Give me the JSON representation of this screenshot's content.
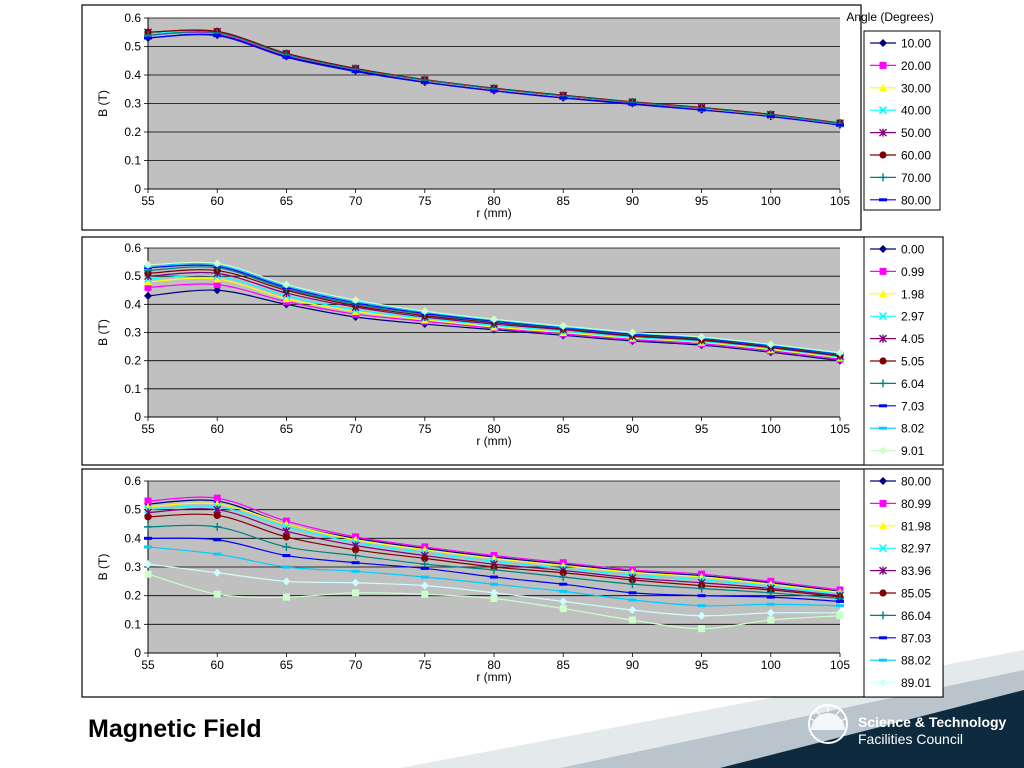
{
  "slide": {
    "title": "Magnetic Field",
    "logo_line1": "Science & Technology",
    "logo_line2": "Facilities Council",
    "colors": {
      "plot_bg": "#c0c0c0",
      "banner_dark": "#0e2a3f",
      "banner_light": "#b9c4cc"
    }
  },
  "chart_data": [
    {
      "type": "line",
      "xlabel": "r (mm)",
      "ylabel": "B (T)",
      "xlim": [
        55,
        105
      ],
      "ylim": [
        0,
        0.6
      ],
      "x_ticks": [
        55,
        60,
        65,
        70,
        75,
        80,
        85,
        90,
        95,
        100,
        105
      ],
      "y_ticks": [
        0,
        0.1,
        0.2,
        0.3,
        0.4,
        0.5,
        0.6
      ],
      "grid": "horizontal",
      "legend_title": "Angle (Degrees)",
      "legend_position": "right",
      "x": [
        55,
        60,
        65,
        70,
        75,
        80,
        85,
        90,
        95,
        100,
        105
      ],
      "series": [
        {
          "name": "10.00",
          "color": "#000080",
          "marker": "diamond",
          "values": [
            0.53,
            0.54,
            0.465,
            0.415,
            0.375,
            0.345,
            0.32,
            0.3,
            0.278,
            0.255,
            0.225
          ]
        },
        {
          "name": "20.00",
          "color": "#ff00ff",
          "marker": "square",
          "values": [
            0.54,
            0.545,
            0.47,
            0.42,
            0.38,
            0.35,
            0.325,
            0.303,
            0.282,
            0.258,
            0.228
          ]
        },
        {
          "name": "30.00",
          "color": "#ffff00",
          "marker": "triangle",
          "values": [
            0.545,
            0.548,
            0.472,
            0.421,
            0.381,
            0.351,
            0.326,
            0.304,
            0.283,
            0.259,
            0.229
          ]
        },
        {
          "name": "40.00",
          "color": "#00ffff",
          "marker": "x",
          "values": [
            0.545,
            0.55,
            0.473,
            0.422,
            0.382,
            0.352,
            0.327,
            0.305,
            0.284,
            0.26,
            0.23
          ]
        },
        {
          "name": "50.00",
          "color": "#800080",
          "marker": "star",
          "values": [
            0.55,
            0.552,
            0.475,
            0.423,
            0.383,
            0.353,
            0.328,
            0.305,
            0.285,
            0.261,
            0.231
          ]
        },
        {
          "name": "60.00",
          "color": "#800000",
          "marker": "circle",
          "values": [
            0.55,
            0.553,
            0.476,
            0.423,
            0.384,
            0.354,
            0.329,
            0.306,
            0.286,
            0.262,
            0.232
          ]
        },
        {
          "name": "70.00",
          "color": "#008080",
          "marker": "plus",
          "values": [
            0.54,
            0.548,
            0.472,
            0.42,
            0.382,
            0.352,
            0.327,
            0.304,
            0.284,
            0.26,
            0.23
          ]
        },
        {
          "name": "80.00",
          "color": "#0000ff",
          "marker": "dash",
          "values": [
            0.53,
            0.538,
            0.462,
            0.412,
            0.374,
            0.344,
            0.319,
            0.297,
            0.277,
            0.254,
            0.224
          ]
        }
      ]
    },
    {
      "type": "line",
      "xlabel": "r (mm)",
      "ylabel": "B (T)",
      "xlim": [
        55,
        105
      ],
      "ylim": [
        0,
        0.6
      ],
      "x_ticks": [
        55,
        60,
        65,
        70,
        75,
        80,
        85,
        90,
        95,
        100,
        105
      ],
      "y_ticks": [
        0,
        0.1,
        0.2,
        0.3,
        0.4,
        0.5,
        0.6
      ],
      "grid": "horizontal",
      "legend_position": "right",
      "x": [
        55,
        60,
        65,
        70,
        75,
        80,
        85,
        90,
        95,
        100,
        105
      ],
      "series": [
        {
          "name": "0.00",
          "color": "#000080",
          "marker": "diamond",
          "values": [
            0.43,
            0.45,
            0.4,
            0.355,
            0.33,
            0.31,
            0.29,
            0.27,
            0.255,
            0.23,
            0.2
          ]
        },
        {
          "name": "0.99",
          "color": "#ff00ff",
          "marker": "square",
          "values": [
            0.46,
            0.47,
            0.41,
            0.365,
            0.34,
            0.315,
            0.295,
            0.275,
            0.26,
            0.235,
            0.205
          ]
        },
        {
          "name": "1.98",
          "color": "#ffff00",
          "marker": "triangle",
          "values": [
            0.48,
            0.49,
            0.42,
            0.375,
            0.345,
            0.32,
            0.3,
            0.28,
            0.265,
            0.24,
            0.21
          ]
        },
        {
          "name": "2.97",
          "color": "#00ffff",
          "marker": "x",
          "values": [
            0.49,
            0.5,
            0.43,
            0.38,
            0.35,
            0.325,
            0.305,
            0.283,
            0.268,
            0.243,
            0.213
          ]
        },
        {
          "name": "4.05",
          "color": "#800080",
          "marker": "star",
          "values": [
            0.5,
            0.51,
            0.44,
            0.39,
            0.355,
            0.33,
            0.31,
            0.287,
            0.272,
            0.246,
            0.216
          ]
        },
        {
          "name": "5.05",
          "color": "#800000",
          "marker": "circle",
          "values": [
            0.51,
            0.52,
            0.45,
            0.395,
            0.36,
            0.335,
            0.313,
            0.29,
            0.275,
            0.249,
            0.219
          ]
        },
        {
          "name": "6.04",
          "color": "#008080",
          "marker": "plus",
          "values": [
            0.52,
            0.53,
            0.455,
            0.4,
            0.365,
            0.338,
            0.316,
            0.293,
            0.278,
            0.252,
            0.222
          ]
        },
        {
          "name": "7.03",
          "color": "#0000ff",
          "marker": "dash",
          "values": [
            0.53,
            0.535,
            0.46,
            0.405,
            0.368,
            0.341,
            0.318,
            0.295,
            0.28,
            0.254,
            0.224
          ]
        },
        {
          "name": "8.02",
          "color": "#00ccff",
          "marker": "dash",
          "values": [
            0.535,
            0.54,
            0.465,
            0.41,
            0.372,
            0.344,
            0.32,
            0.298,
            0.282,
            0.256,
            0.226
          ]
        },
        {
          "name": "9.01",
          "color": "#ccffcc",
          "marker": "diamond",
          "values": [
            0.54,
            0.545,
            0.47,
            0.415,
            0.376,
            0.347,
            0.323,
            0.3,
            0.284,
            0.258,
            0.228
          ]
        }
      ]
    },
    {
      "type": "line",
      "xlabel": "r (mm)",
      "ylabel": "B (T)",
      "xlim": [
        55,
        105
      ],
      "ylim": [
        0,
        0.6
      ],
      "x_ticks": [
        55,
        60,
        65,
        70,
        75,
        80,
        85,
        90,
        95,
        100,
        105
      ],
      "y_ticks": [
        0,
        0.1,
        0.2,
        0.3,
        0.4,
        0.5,
        0.6
      ],
      "grid": "horizontal",
      "legend_position": "right",
      "x": [
        55,
        60,
        65,
        70,
        75,
        80,
        85,
        90,
        95,
        100,
        105
      ],
      "series": [
        {
          "name": "80.00",
          "color": "#000080",
          "marker": "diamond",
          "values": [
            0.52,
            0.53,
            0.45,
            0.4,
            0.365,
            0.335,
            0.31,
            0.285,
            0.27,
            0.245,
            0.215
          ]
        },
        {
          "name": "80.99",
          "color": "#ff00ff",
          "marker": "square",
          "values": [
            0.53,
            0.54,
            0.46,
            0.405,
            0.37,
            0.34,
            0.315,
            0.29,
            0.275,
            0.25,
            0.22
          ]
        },
        {
          "name": "81.98",
          "color": "#ffff00",
          "marker": "triangle",
          "values": [
            0.51,
            0.52,
            0.45,
            0.395,
            0.36,
            0.33,
            0.305,
            0.282,
            0.265,
            0.24,
            0.212
          ]
        },
        {
          "name": "82.97",
          "color": "#00ffff",
          "marker": "x",
          "values": [
            0.5,
            0.51,
            0.44,
            0.385,
            0.35,
            0.32,
            0.295,
            0.272,
            0.255,
            0.232,
            0.205
          ]
        },
        {
          "name": "83.96",
          "color": "#800080",
          "marker": "star",
          "values": [
            0.49,
            0.5,
            0.425,
            0.375,
            0.34,
            0.31,
            0.288,
            0.262,
            0.245,
            0.225,
            0.2
          ]
        },
        {
          "name": "85.05",
          "color": "#800000",
          "marker": "circle",
          "values": [
            0.475,
            0.48,
            0.405,
            0.36,
            0.33,
            0.3,
            0.28,
            0.255,
            0.235,
            0.22,
            0.195
          ]
        },
        {
          "name": "86.04",
          "color": "#008080",
          "marker": "plus",
          "values": [
            0.44,
            0.44,
            0.37,
            0.34,
            0.31,
            0.29,
            0.265,
            0.24,
            0.225,
            0.21,
            0.19
          ]
        },
        {
          "name": "87.03",
          "color": "#0000ff",
          "marker": "dash",
          "values": [
            0.4,
            0.395,
            0.34,
            0.315,
            0.295,
            0.265,
            0.24,
            0.21,
            0.2,
            0.195,
            0.18
          ]
        },
        {
          "name": "88.02",
          "color": "#00ccff",
          "marker": "dash",
          "values": [
            0.37,
            0.345,
            0.3,
            0.285,
            0.265,
            0.24,
            0.215,
            0.185,
            0.165,
            0.17,
            0.165
          ]
        },
        {
          "name": "89.01",
          "color": "#ccffff",
          "marker": "diamond",
          "values": [
            0.31,
            0.28,
            0.25,
            0.245,
            0.235,
            0.21,
            0.18,
            0.15,
            0.13,
            0.14,
            0.14
          ]
        },
        {
          "name": "",
          "color": "#ccffcc",
          "marker": "square",
          "values": [
            0.275,
            0.205,
            0.195,
            0.21,
            0.205,
            0.19,
            0.155,
            0.115,
            0.085,
            0.115,
            0.13
          ]
        }
      ]
    }
  ]
}
